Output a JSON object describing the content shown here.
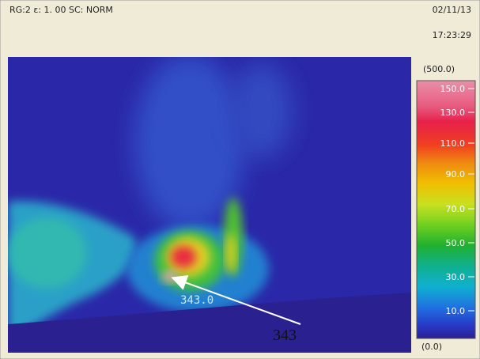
{
  "header": {
    "settings": "RG:2 ε: 1. 00 SC: NORM",
    "date": "02/11/13",
    "time": "17:23:29"
  },
  "colorbar": {
    "max_label": "(500.0)",
    "labels": [
      "150.0",
      "130.0",
      "110.0",
      "90.0",
      "70.0",
      "50.0",
      "30.0",
      "10.0"
    ],
    "min_label": "(0.0)"
  },
  "image": {
    "spot_reading": "343.0",
    "annotation": "343"
  }
}
